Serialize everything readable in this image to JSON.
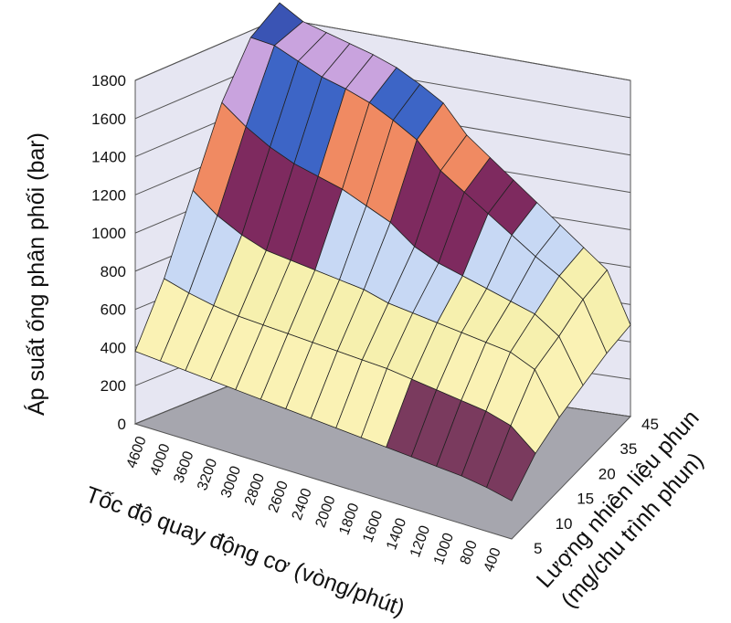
{
  "chart_data": {
    "type": "surface-3d",
    "title": "",
    "zlabel": "Áp suất ống phân phối (bar)",
    "xlabel": "Tốc độ quay động cơ (vòng/phút)",
    "ylabel_line1": "Lượng nhiên liệu phun",
    "ylabel_line2": "(mg/chu trình phun)",
    "z_ticks": [
      "0",
      "200",
      "400",
      "600",
      "800",
      "1000",
      "1200",
      "1400",
      "1600",
      "1800"
    ],
    "zlim": [
      0,
      1800
    ],
    "x_ticks": [
      "4600",
      "4000",
      "3600",
      "3200",
      "3000",
      "2800",
      "2600",
      "2400",
      "2000",
      "1800",
      "1600",
      "1400",
      "1200",
      "1000",
      "800",
      "400"
    ],
    "y_ticks": [
      "5",
      "10",
      "15",
      "20",
      "35",
      "45"
    ],
    "grid": true,
    "colorbands": [
      {
        "from": 0,
        "to": 200,
        "color": "#7a3a5e"
      },
      {
        "from": 200,
        "to": 400,
        "color": "#7a3a5e"
      },
      {
        "from": 400,
        "to": 600,
        "color": "#faf2b4"
      },
      {
        "from": 600,
        "to": 800,
        "color": "#f6f0ae"
      },
      {
        "from": 800,
        "to": 1000,
        "color": "#c7d8f4"
      },
      {
        "from": 1000,
        "to": 1200,
        "color": "#7e2a5f"
      },
      {
        "from": 1200,
        "to": 1400,
        "color": "#f08a62"
      },
      {
        "from": 1400,
        "to": 1600,
        "color": "#3d65c6"
      },
      {
        "from": 1600,
        "to": 1800,
        "color": "#c9a3de"
      },
      {
        "from": 1800,
        "to": 2000,
        "color": "#3a54b4"
      }
    ],
    "surface": {
      "rpm": [
        4600,
        4000,
        3600,
        3200,
        3000,
        2800,
        2600,
        2400,
        2000,
        1800,
        1600,
        1400,
        1200,
        1000,
        800,
        400
      ],
      "fuel_mg": [
        45,
        35,
        20,
        15,
        10,
        5
      ],
      "pressure_bar": [
        [
          1900,
          1820,
          1780,
          1740,
          1700,
          1650,
          1580,
          1500,
          1350,
          1250,
          1150,
          1050,
          950,
          850,
          750,
          480
        ],
        [
          1780,
          1760,
          1700,
          1640,
          1600,
          1550,
          1480,
          1400,
          1260,
          1170,
          1080,
          990,
          900,
          820,
          720,
          460
        ],
        [
          1500,
          1400,
          1320,
          1260,
          1220,
          1180,
          1120,
          1060,
          960,
          900,
          860,
          820,
          780,
          740,
          650,
          420
        ],
        [
          1100,
          1000,
          930,
          880,
          860,
          840,
          820,
          800,
          760,
          740,
          720,
          700,
          680,
          660,
          600,
          380
        ],
        [
          700,
          660,
          630,
          610,
          600,
          590,
          580,
          570,
          560,
          550,
          530,
          510,
          490,
          470,
          430,
          320
        ],
        [
          380,
          370,
          360,
          350,
          340,
          330,
          320,
          310,
          300,
          290,
          280,
          270,
          260,
          250,
          230,
          200
        ]
      ]
    }
  }
}
